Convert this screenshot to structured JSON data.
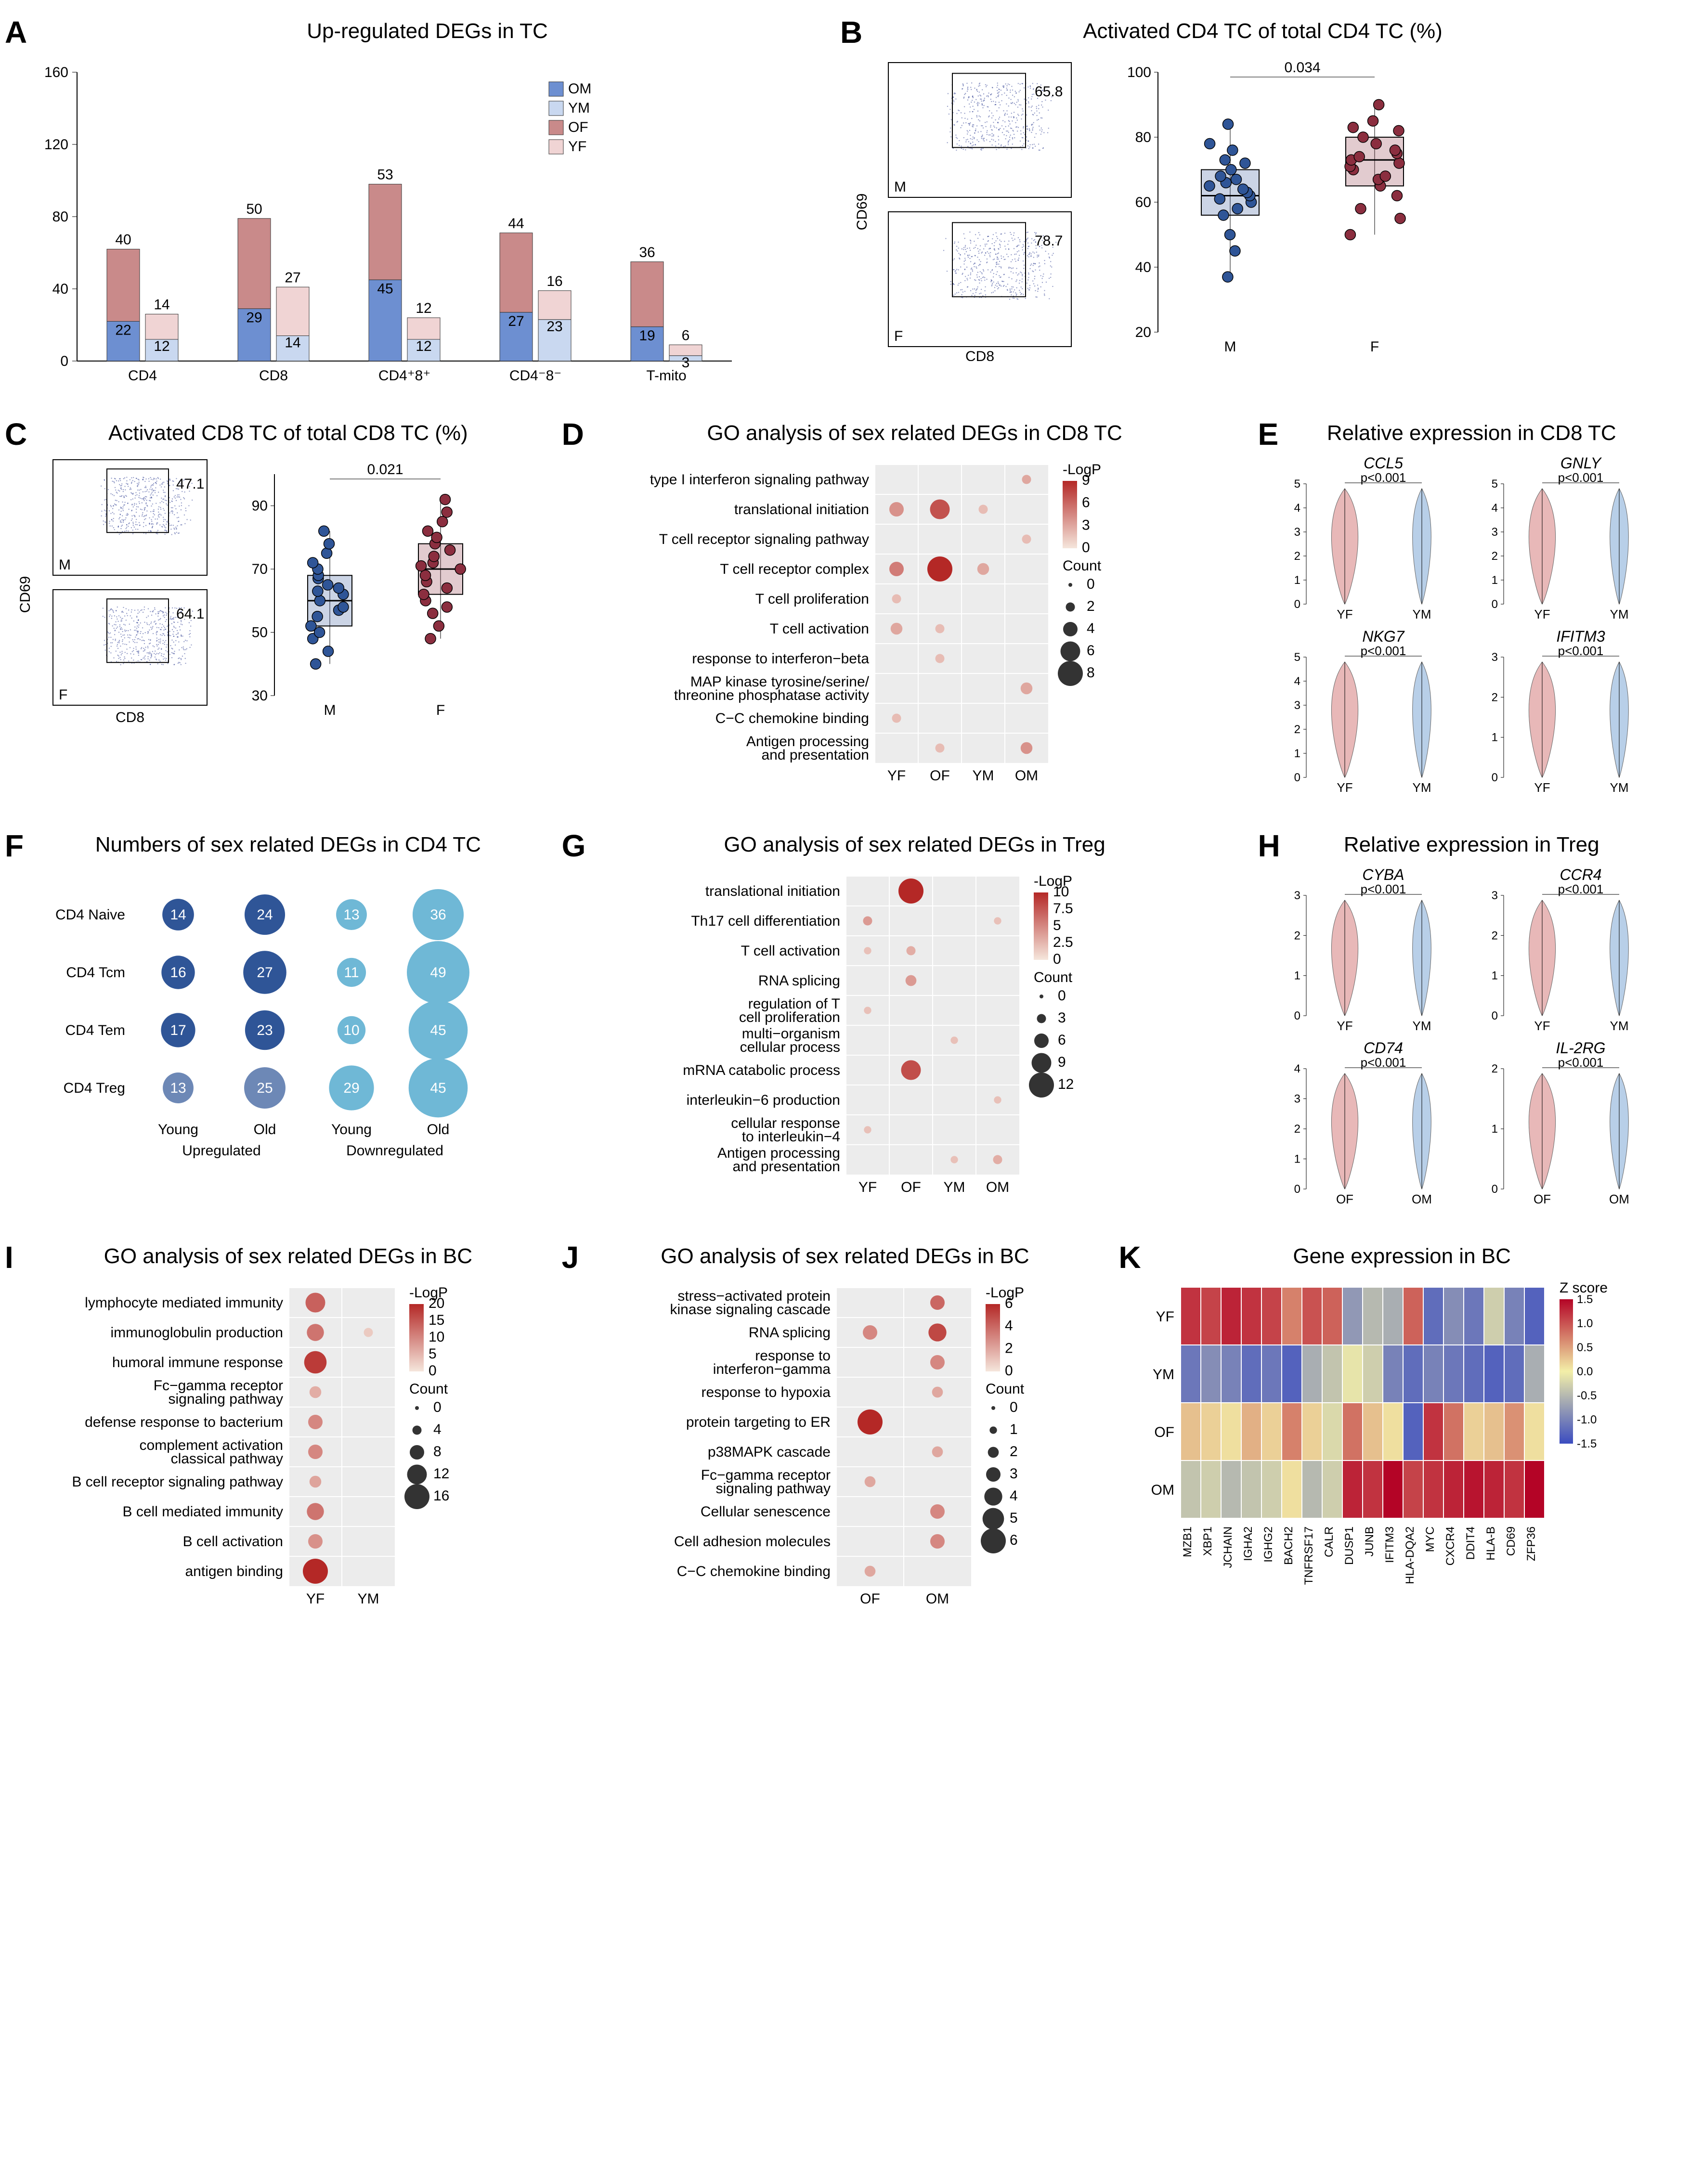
{
  "colors": {
    "OM": "#6d8fd1",
    "YM": "#c9d8f0",
    "OF": "#c98a8a",
    "YF": "#f0d4d4",
    "male_dot": "#2f5597",
    "female_dot": "#8b2e3f",
    "violin_f": "#e8b8b8",
    "violin_m": "#b8cfe8",
    "heat_low": "#3b4cc0",
    "heat_mid": "#f3efa8",
    "heat_high": "#b40426",
    "bubble_dark": "#2f5597",
    "bubble_light": "#6fb8d6",
    "grid": "#e8e8e8",
    "dotplot_bg": "#ececec"
  },
  "A": {
    "title": "Up-regulated DEGs in TC",
    "categories": [
      "CD4",
      "CD8",
      "CD4⁺8⁺",
      "CD4⁻8⁻",
      "T-mito"
    ],
    "series": [
      "OM",
      "YM",
      "OF",
      "YF"
    ],
    "ylim": [
      0,
      160
    ],
    "ytick": 40,
    "values": {
      "CD4": {
        "OM": 22,
        "OF": 40,
        "YM": 12,
        "YF": 14
      },
      "CD8": {
        "OM": 29,
        "OF": 50,
        "YM": 14,
        "YF": 27
      },
      "CD4+8+": {
        "OM": 45,
        "OF": 53,
        "YM": 12,
        "YF": 12
      },
      "CD4-8-": {
        "OM": 27,
        "OF": 44,
        "YM": 23,
        "YF": 16
      },
      "T-mito": {
        "OM": 19,
        "OF": 36,
        "YM": 3,
        "YF": 6
      }
    }
  },
  "B": {
    "title": "Activated CD4 TC of total CD4 TC (%)",
    "facs": {
      "M_pct": "65.8",
      "F_pct": "78.7",
      "y_axis": "CD69",
      "x_axis": "CD8"
    },
    "box": {
      "ylim": [
        20,
        100
      ],
      "ytick": 20,
      "pval": "0.034",
      "M": {
        "q1": 56,
        "med": 62,
        "q3": 70,
        "pts": [
          37,
          45,
          50,
          56,
          58,
          60,
          61,
          62,
          63,
          64,
          65,
          66,
          67,
          68,
          70,
          72,
          73,
          76,
          78,
          84
        ]
      },
      "F": {
        "q1": 65,
        "med": 73,
        "q3": 80,
        "pts": [
          50,
          55,
          58,
          62,
          65,
          67,
          68,
          70,
          71,
          72,
          73,
          74,
          75,
          76,
          78,
          80,
          82,
          83,
          85,
          90
        ]
      }
    }
  },
  "C": {
    "title": "Activated CD8 TC of total CD8 TC (%)",
    "facs": {
      "M_pct": "47.1",
      "F_pct": "64.1",
      "y_axis": "CD69",
      "x_axis": "CD8"
    },
    "box": {
      "ylim": [
        30,
        100
      ],
      "ytick": 20,
      "pval": "0.021",
      "M": {
        "q1": 52,
        "med": 60,
        "q3": 68,
        "pts": [
          40,
          44,
          48,
          50,
          52,
          55,
          57,
          58,
          60,
          62,
          63,
          64,
          65,
          67,
          68,
          70,
          72,
          75,
          78,
          82
        ]
      },
      "F": {
        "q1": 62,
        "med": 70,
        "q3": 78,
        "pts": [
          48,
          52,
          56,
          58,
          60,
          62,
          64,
          66,
          68,
          70,
          71,
          72,
          74,
          76,
          78,
          80,
          82,
          85,
          88,
          92
        ]
      }
    }
  },
  "D": {
    "title": "GO analysis of sex related DEGs in CD8 TC",
    "y_terms": [
      "type I interferon signaling pathway",
      "translational initiation",
      "T cell receptor signaling pathway",
      "T cell receptor complex",
      "T cell proliferation",
      "T cell activation",
      "response to interferon−beta",
      "MAP kinase tyrosine/serine/\nthreonine phosphatase activity",
      "C−C chemokine binding",
      "Antigen processing\nand presentation"
    ],
    "x_groups": [
      "YF",
      "OF",
      "YM",
      "OM"
    ],
    "logp_scale": {
      "label": "-LogP",
      "max": 9,
      "breaks": [
        0,
        3,
        6,
        9
      ]
    },
    "count_scale": {
      "label": "Count",
      "breaks": [
        0,
        2,
        4,
        6,
        8
      ]
    },
    "points": [
      {
        "y": 0,
        "x": 3,
        "c": 2,
        "p": 3
      },
      {
        "y": 1,
        "x": 0,
        "c": 4,
        "p": 4
      },
      {
        "y": 1,
        "x": 1,
        "c": 6,
        "p": 7
      },
      {
        "y": 1,
        "x": 2,
        "c": 2,
        "p": 2
      },
      {
        "y": 2,
        "x": 3,
        "c": 2,
        "p": 2
      },
      {
        "y": 3,
        "x": 0,
        "c": 4,
        "p": 5
      },
      {
        "y": 3,
        "x": 1,
        "c": 8,
        "p": 9
      },
      {
        "y": 3,
        "x": 2,
        "c": 3,
        "p": 3
      },
      {
        "y": 4,
        "x": 0,
        "c": 2,
        "p": 2
      },
      {
        "y": 5,
        "x": 0,
        "c": 3,
        "p": 3
      },
      {
        "y": 5,
        "x": 1,
        "c": 2,
        "p": 2
      },
      {
        "y": 6,
        "x": 1,
        "c": 2,
        "p": 2
      },
      {
        "y": 7,
        "x": 3,
        "c": 3,
        "p": 3
      },
      {
        "y": 8,
        "x": 0,
        "c": 2,
        "p": 2
      },
      {
        "y": 9,
        "x": 1,
        "c": 2,
        "p": 2
      },
      {
        "y": 9,
        "x": 3,
        "c": 3,
        "p": 4
      }
    ]
  },
  "E": {
    "title": "Relative expression  in CD8 TC",
    "violins": [
      {
        "gene": "CCL5",
        "p": "p<0.001",
        "ymax": 5
      },
      {
        "gene": "GNLY",
        "p": "p<0.001",
        "ymax": 5
      },
      {
        "gene": "NKG7",
        "p": "p<0.001",
        "ymax": 5
      },
      {
        "gene": "IFITM3",
        "p": "p<0.001",
        "ymax": 3
      }
    ],
    "x": [
      "YF",
      "YM"
    ]
  },
  "F": {
    "title": "Numbers of sex related DEGs in CD4 TC",
    "rows": [
      "CD4 Naive",
      "CD4 Tcm",
      "CD4 Tem",
      "CD4 Treg"
    ],
    "cols_top": [
      "Young",
      "Old",
      "Young",
      "Old"
    ],
    "cols_bottom": [
      "Upregulated",
      "Downregulated"
    ],
    "values": [
      [
        14,
        24,
        13,
        36
      ],
      [
        16,
        27,
        11,
        49
      ],
      [
        17,
        23,
        10,
        45
      ],
      [
        13,
        25,
        29,
        45
      ]
    ]
  },
  "G": {
    "title": "GO analysis of sex related DEGs in Treg",
    "y_terms": [
      "translational initiation",
      "Th17 cell differentiation",
      "T cell activation",
      "RNA splicing",
      "regulation of T\ncell proliferation",
      "multi−organism\ncellular process",
      "mRNA catabolic process",
      "interleukin−6 production",
      "cellular response\nto interleukin−4",
      "Antigen processing\nand presentation"
    ],
    "x_groups": [
      "YF",
      "OF",
      "YM",
      "OM"
    ],
    "logp_scale": {
      "label": "-LogP",
      "max": 10,
      "breaks": [
        0,
        2.5,
        5.0,
        7.5,
        10.0
      ]
    },
    "count_scale": {
      "label": "Count",
      "breaks": [
        0,
        3,
        6,
        9,
        12
      ]
    },
    "points": [
      {
        "y": 0,
        "x": 1,
        "c": 12,
        "p": 10
      },
      {
        "y": 1,
        "x": 0,
        "c": 3,
        "p": 4
      },
      {
        "y": 1,
        "x": 3,
        "c": 2,
        "p": 2
      },
      {
        "y": 2,
        "x": 0,
        "c": 2,
        "p": 2
      },
      {
        "y": 2,
        "x": 1,
        "c": 3,
        "p": 3
      },
      {
        "y": 3,
        "x": 1,
        "c": 4,
        "p": 4
      },
      {
        "y": 4,
        "x": 0,
        "c": 2,
        "p": 2
      },
      {
        "y": 5,
        "x": 2,
        "c": 2,
        "p": 2
      },
      {
        "y": 6,
        "x": 1,
        "c": 9,
        "p": 8
      },
      {
        "y": 7,
        "x": 3,
        "c": 2,
        "p": 2
      },
      {
        "y": 8,
        "x": 0,
        "c": 2,
        "p": 2
      },
      {
        "y": 9,
        "x": 2,
        "c": 2,
        "p": 2
      },
      {
        "y": 9,
        "x": 3,
        "c": 3,
        "p": 3
      }
    ]
  },
  "H": {
    "title": "Relative expression in Treg",
    "violins": [
      {
        "gene": "CYBA",
        "p": "p<0.001",
        "ymax": 3,
        "x": [
          "YF",
          "YM"
        ]
      },
      {
        "gene": "CCR4",
        "p": "p<0.001",
        "ymax": 3,
        "x": [
          "YF",
          "YM"
        ]
      },
      {
        "gene": "CD74",
        "p": "p<0.001",
        "ymax": 4,
        "x": [
          "OF",
          "OM"
        ]
      },
      {
        "gene": "IL-2RG",
        "p": "p<0.001",
        "ymax": 2,
        "x": [
          "OF",
          "OM"
        ]
      }
    ]
  },
  "I": {
    "title": "GO analysis of sex related DEGs in BC",
    "y_terms": [
      "lymphocyte mediated immunity",
      "immunoglobulin production",
      "humoral immune response",
      "Fc−gamma receptor\nsignaling pathway",
      "defense response to bacterium",
      "complement activation\nclassical pathway",
      "B cell receptor signaling pathway",
      "B cell mediated immunity",
      "B cell activation",
      "antigen binding"
    ],
    "x_groups": [
      "YF",
      "YM"
    ],
    "logp_scale": {
      "label": "-LogP",
      "max": 20,
      "breaks": [
        0,
        5,
        10,
        15,
        20
      ]
    },
    "count_scale": {
      "label": "Count",
      "breaks": [
        0,
        4,
        8,
        12,
        16
      ]
    },
    "points": [
      {
        "y": 0,
        "x": 0,
        "c": 12,
        "p": 14
      },
      {
        "y": 1,
        "x": 0,
        "c": 10,
        "p": 12
      },
      {
        "y": 1,
        "x": 1,
        "c": 4,
        "p": 3
      },
      {
        "y": 2,
        "x": 0,
        "c": 14,
        "p": 18
      },
      {
        "y": 3,
        "x": 0,
        "c": 6,
        "p": 6
      },
      {
        "y": 4,
        "x": 0,
        "c": 8,
        "p": 10
      },
      {
        "y": 5,
        "x": 0,
        "c": 8,
        "p": 10
      },
      {
        "y": 6,
        "x": 0,
        "c": 6,
        "p": 7
      },
      {
        "y": 7,
        "x": 0,
        "c": 10,
        "p": 12
      },
      {
        "y": 8,
        "x": 0,
        "c": 8,
        "p": 9
      },
      {
        "y": 9,
        "x": 0,
        "c": 16,
        "p": 20
      }
    ]
  },
  "J": {
    "title": "GO analysis of sex related DEGs in BC",
    "y_terms": [
      "stress−activated protein\nkinase signaling cascade",
      "RNA splicing",
      "response to\ninterferon−gamma",
      "response to hypoxia",
      "protein targeting to ER",
      "p38MAPK cascade",
      "Fc−gamma receptor\nsignaling pathway",
      "Cellular senescence",
      "Cell adhesion molecules",
      "C−C chemokine binding"
    ],
    "x_groups": [
      "OF",
      "OM"
    ],
    "logp_scale": {
      "label": "-LogP",
      "max": 6,
      "breaks": [
        0,
        2,
        4,
        6
      ]
    },
    "count_scale": {
      "label": "Count",
      "breaks": [
        0,
        1,
        2,
        3,
        4,
        5,
        6
      ]
    },
    "points": [
      {
        "y": 0,
        "x": 1,
        "c": 3,
        "p": 4
      },
      {
        "y": 1,
        "x": 0,
        "c": 3,
        "p": 3
      },
      {
        "y": 1,
        "x": 1,
        "c": 4,
        "p": 5
      },
      {
        "y": 2,
        "x": 1,
        "c": 3,
        "p": 3
      },
      {
        "y": 3,
        "x": 1,
        "c": 2,
        "p": 2
      },
      {
        "y": 4,
        "x": 0,
        "c": 6,
        "p": 6
      },
      {
        "y": 5,
        "x": 1,
        "c": 2,
        "p": 2
      },
      {
        "y": 6,
        "x": 0,
        "c": 2,
        "p": 2
      },
      {
        "y": 7,
        "x": 1,
        "c": 3,
        "p": 3
      },
      {
        "y": 8,
        "x": 1,
        "c": 3,
        "p": 3
      },
      {
        "y": 9,
        "x": 0,
        "c": 2,
        "p": 2
      }
    ]
  },
  "K": {
    "title": "Gene expression in BC",
    "rows": [
      "YF",
      "YM",
      "OF",
      "OM"
    ],
    "genes": [
      "MZB1",
      "XBP1",
      "JCHAIN",
      "IGHA2",
      "IGHG2",
      "BACH2",
      "TNFRSF17",
      "CALR",
      "DUSP1",
      "JUNB",
      "IFITM3",
      "HLA-DQA2",
      "MYC",
      "CXCR4",
      "DDIT4",
      "HLA-B",
      "CD69",
      "ZFP36"
    ],
    "zscale": {
      "label": "Z score",
      "breaks": [
        1.5,
        1.0,
        0.5,
        0.0,
        -0.5,
        -1.0,
        -1.5
      ]
    },
    "matrix": [
      [
        1.2,
        1.1,
        1.3,
        1.2,
        1.1,
        0.7,
        1.0,
        0.9,
        -0.8,
        -0.5,
        -0.6,
        0.9,
        -1.2,
        -0.9,
        -1.1,
        -0.3,
        -1.0,
        -1.3
      ],
      [
        -1.1,
        -0.9,
        -1.0,
        -1.2,
        -1.1,
        -1.3,
        -0.6,
        -0.4,
        -0.1,
        -0.3,
        -1.0,
        -1.2,
        -1.0,
        -1.1,
        -1.2,
        -1.3,
        -1.2,
        -0.6
      ],
      [
        0.3,
        0.2,
        0.1,
        0.4,
        0.2,
        0.7,
        0.2,
        -0.2,
        0.8,
        0.3,
        0.1,
        -1.3,
        1.2,
        0.8,
        0.2,
        0.3,
        0.6,
        0.1
      ],
      [
        -0.4,
        -0.3,
        -0.5,
        -0.4,
        -0.3,
        0.1,
        -0.5,
        -0.3,
        1.3,
        1.2,
        1.5,
        1.1,
        1.2,
        1.3,
        1.4,
        1.3,
        1.2,
        1.5
      ]
    ]
  }
}
